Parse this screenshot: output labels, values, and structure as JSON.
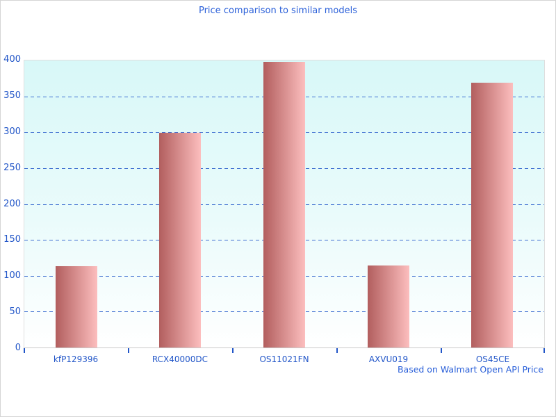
{
  "title": "Price comparison to similar models",
  "caption": "Based on Walmart Open API Price",
  "colors": {
    "title_text": "#2b60d9",
    "axis_text": "#2256c8",
    "gridline": "#3c6cd0",
    "plot_bg_top": "#d8f8f8",
    "plot_bg_bottom": "#ffffff",
    "bar_gradient_left": "#b25e5e",
    "bar_gradient_right": "#fcbebe",
    "plot_border": "#dedede",
    "axis_line": "#c9c9c9",
    "page_border": "#d5d5d5"
  },
  "chart_data": {
    "type": "bar",
    "title": "Price comparison to similar models",
    "categories": [
      "kfP129396",
      "RCX40000DC",
      "OS11021FN",
      "AXVU019",
      "OS45CE"
    ],
    "values": [
      113,
      299,
      398,
      114,
      369
    ],
    "xlabel": "",
    "ylabel": "",
    "ylim": [
      0,
      400
    ],
    "ytick_step": 50,
    "yticks": [
      0,
      50,
      100,
      150,
      200,
      250,
      300,
      350,
      400
    ],
    "grid": "horizontal-dashed",
    "legend_position": "none",
    "annotation": "Based on Walmart Open API Price"
  }
}
